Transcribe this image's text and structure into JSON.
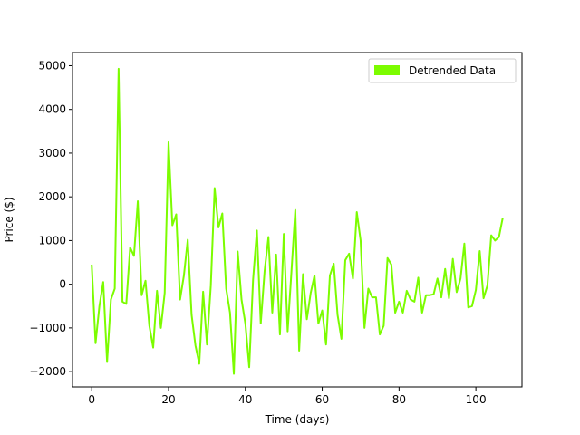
{
  "chart_data": {
    "type": "line",
    "title": "",
    "xlabel": "Time (days)",
    "ylabel": "Price ($)",
    "xlim": [
      -5,
      112
    ],
    "ylim": [
      -2350,
      5300
    ],
    "xticks": [
      0,
      20,
      40,
      60,
      80,
      100
    ],
    "xtick_labels": [
      "0",
      "20",
      "40",
      "60",
      "80",
      "100"
    ],
    "yticks": [
      -2000,
      -1000,
      0,
      1000,
      2000,
      3000,
      4000,
      5000
    ],
    "ytick_labels": [
      "−2000",
      "−1000",
      "0",
      "1000",
      "2000",
      "3000",
      "4000",
      "5000"
    ],
    "grid": false,
    "legend_position": "top-right",
    "series": [
      {
        "name": "Detrended Data",
        "color": "#7cfc00",
        "x": [
          0,
          1,
          2,
          3,
          4,
          5,
          6,
          7,
          8,
          9,
          10,
          11,
          12,
          13,
          14,
          15,
          16,
          17,
          18,
          19,
          20,
          21,
          22,
          23,
          24,
          25,
          26,
          27,
          28,
          29,
          30,
          31,
          32,
          33,
          34,
          35,
          36,
          37,
          38,
          39,
          40,
          41,
          42,
          43,
          44,
          45,
          46,
          47,
          48,
          49,
          50,
          51,
          52,
          53,
          54,
          55,
          56,
          57,
          58,
          59,
          60,
          61,
          62,
          63,
          64,
          65,
          66,
          67,
          68,
          69,
          70,
          71,
          72,
          73,
          74,
          75,
          76,
          77,
          78,
          79,
          80,
          81,
          82,
          83,
          84,
          85,
          86,
          87,
          88,
          89,
          90,
          91,
          92,
          93,
          94,
          95,
          96,
          97,
          98,
          99,
          100,
          101,
          102,
          103,
          104,
          105,
          106,
          107
        ],
        "y": [
          450,
          -1350,
          -500,
          50,
          -1780,
          -350,
          -100,
          4930,
          -400,
          -450,
          840,
          650,
          1900,
          -250,
          80,
          -950,
          -1450,
          -150,
          -1000,
          -200,
          3250,
          1350,
          1600,
          -350,
          200,
          1020,
          -700,
          -1400,
          -1820,
          -170,
          -1380,
          -30,
          2200,
          1300,
          1620,
          -100,
          -650,
          -2050,
          750,
          -350,
          -900,
          -1900,
          100,
          1230,
          -900,
          300,
          1080,
          -650,
          680,
          -1150,
          1150,
          -1080,
          300,
          1700,
          -1520,
          230,
          -800,
          -200,
          200,
          -900,
          -600,
          -1380,
          200,
          470,
          -700,
          -1250,
          550,
          700,
          130,
          1650,
          1000,
          -1000,
          -100,
          -300,
          -300,
          -1150,
          -950,
          600,
          450,
          -650,
          -400,
          -650,
          -150,
          -350,
          -400,
          150,
          -650,
          -250,
          -250,
          -230,
          130,
          -300,
          350,
          -320,
          580,
          -180,
          130,
          930,
          -530,
          -500,
          -130,
          760,
          -320,
          -30,
          1120,
          1000,
          1080,
          1520
        ]
      }
    ]
  }
}
